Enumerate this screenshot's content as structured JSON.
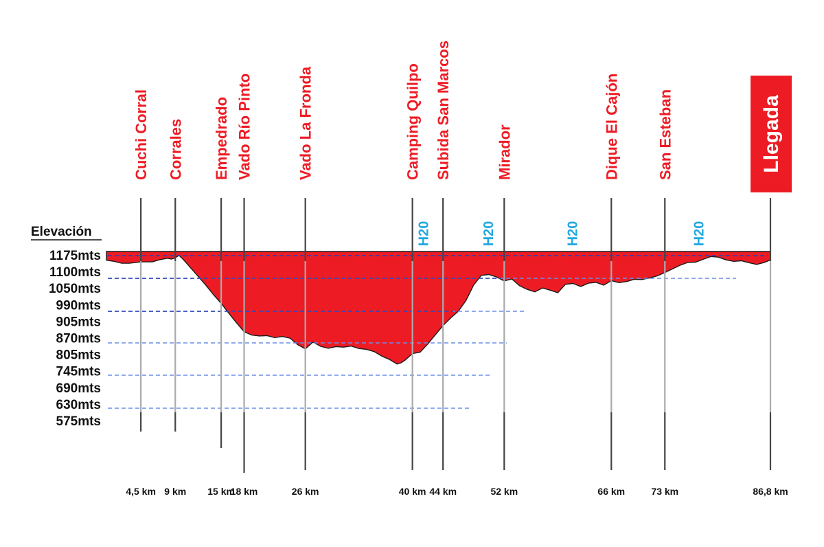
{
  "chart_data": {
    "type": "area",
    "ylabel": "Elevación",
    "y_ticks": [
      "1175mts",
      "1100mts",
      "1050mts",
      "990mts",
      "905mts",
      "870mts",
      "805mts",
      "745mts",
      "690mts",
      "630mts",
      "575mts"
    ],
    "x_range_km": [
      0,
      86.8
    ],
    "waypoints": [
      {
        "name": "Cuchi Corral",
        "km": 4.5,
        "km_label": "4,5 km"
      },
      {
        "name": "Corrales",
        "km": 9,
        "km_label": "9 km"
      },
      {
        "name": "Empedrado",
        "km": 15,
        "km_label": "15 km"
      },
      {
        "name": "Vado Río Pinto",
        "km": 18,
        "km_label": "18 km"
      },
      {
        "name": "Vado La Fronda",
        "km": 26,
        "km_label": "26 km"
      },
      {
        "name": "Camping Quilpo",
        "km": 40,
        "km_label": "40 km"
      },
      {
        "name": "Subida San Marcos",
        "km": 44,
        "km_label": "44 km"
      },
      {
        "name": "Mirador",
        "km": 52,
        "km_label": "52 km"
      },
      {
        "name": "Dique El Cajón",
        "km": 66,
        "km_label": "66 km"
      },
      {
        "name": "San Esteban",
        "km": 73,
        "km_label": "73 km"
      },
      {
        "name": "Llegada",
        "km": 86.8,
        "km_label": "86,8 km",
        "finish": true
      }
    ],
    "water_points": [
      {
        "label": "H20",
        "km": 41.5
      },
      {
        "label": "H20",
        "km": 50
      },
      {
        "label": "H20",
        "km": 61
      },
      {
        "label": "H20",
        "km": 77.5
      }
    ],
    "profile": {
      "x_km": [
        0,
        1,
        2,
        3,
        4.5,
        6,
        7,
        8,
        8.5,
        9,
        9.5,
        10,
        11,
        12,
        13,
        14,
        15,
        16,
        17,
        18,
        19,
        20,
        21,
        22,
        23,
        24,
        25,
        26,
        27,
        28,
        29,
        30,
        31,
        32,
        33,
        34,
        35,
        36,
        37,
        38,
        38.5,
        39,
        40,
        41,
        42,
        43,
        44,
        45,
        46,
        47,
        48,
        49,
        50,
        51,
        52,
        53,
        54,
        55,
        56,
        57,
        58,
        59,
        60,
        61,
        62,
        63,
        64,
        65,
        66,
        67,
        68,
        69,
        70,
        71,
        72,
        73,
        74,
        75,
        76,
        77,
        78,
        79,
        80,
        81,
        82,
        83,
        84,
        85,
        86,
        86.8
      ],
      "elevation_m": [
        1144,
        1140,
        1133,
        1133,
        1138,
        1138,
        1146,
        1151,
        1148,
        1153,
        1161,
        1148,
        1117,
        1086,
        1055,
        1021,
        990,
        955,
        921,
        889,
        877,
        874,
        875,
        868,
        872,
        866,
        843,
        828,
        852,
        837,
        830,
        836,
        834,
        838,
        829,
        826,
        818,
        802,
        790,
        774,
        778,
        787,
        811,
        816,
        845,
        878,
        911,
        938,
        962,
        1000,
        1055,
        1090,
        1093,
        1084,
        1070,
        1077,
        1053,
        1040,
        1031,
        1045,
        1037,
        1028,
        1058,
        1061,
        1050,
        1062,
        1065,
        1055,
        1071,
        1064,
        1068,
        1076,
        1075,
        1081,
        1088,
        1100,
        1113,
        1126,
        1136,
        1137,
        1147,
        1157,
        1155,
        1145,
        1140,
        1142,
        1135,
        1129,
        1136,
        1145
      ]
    },
    "grid": "dashed"
  }
}
